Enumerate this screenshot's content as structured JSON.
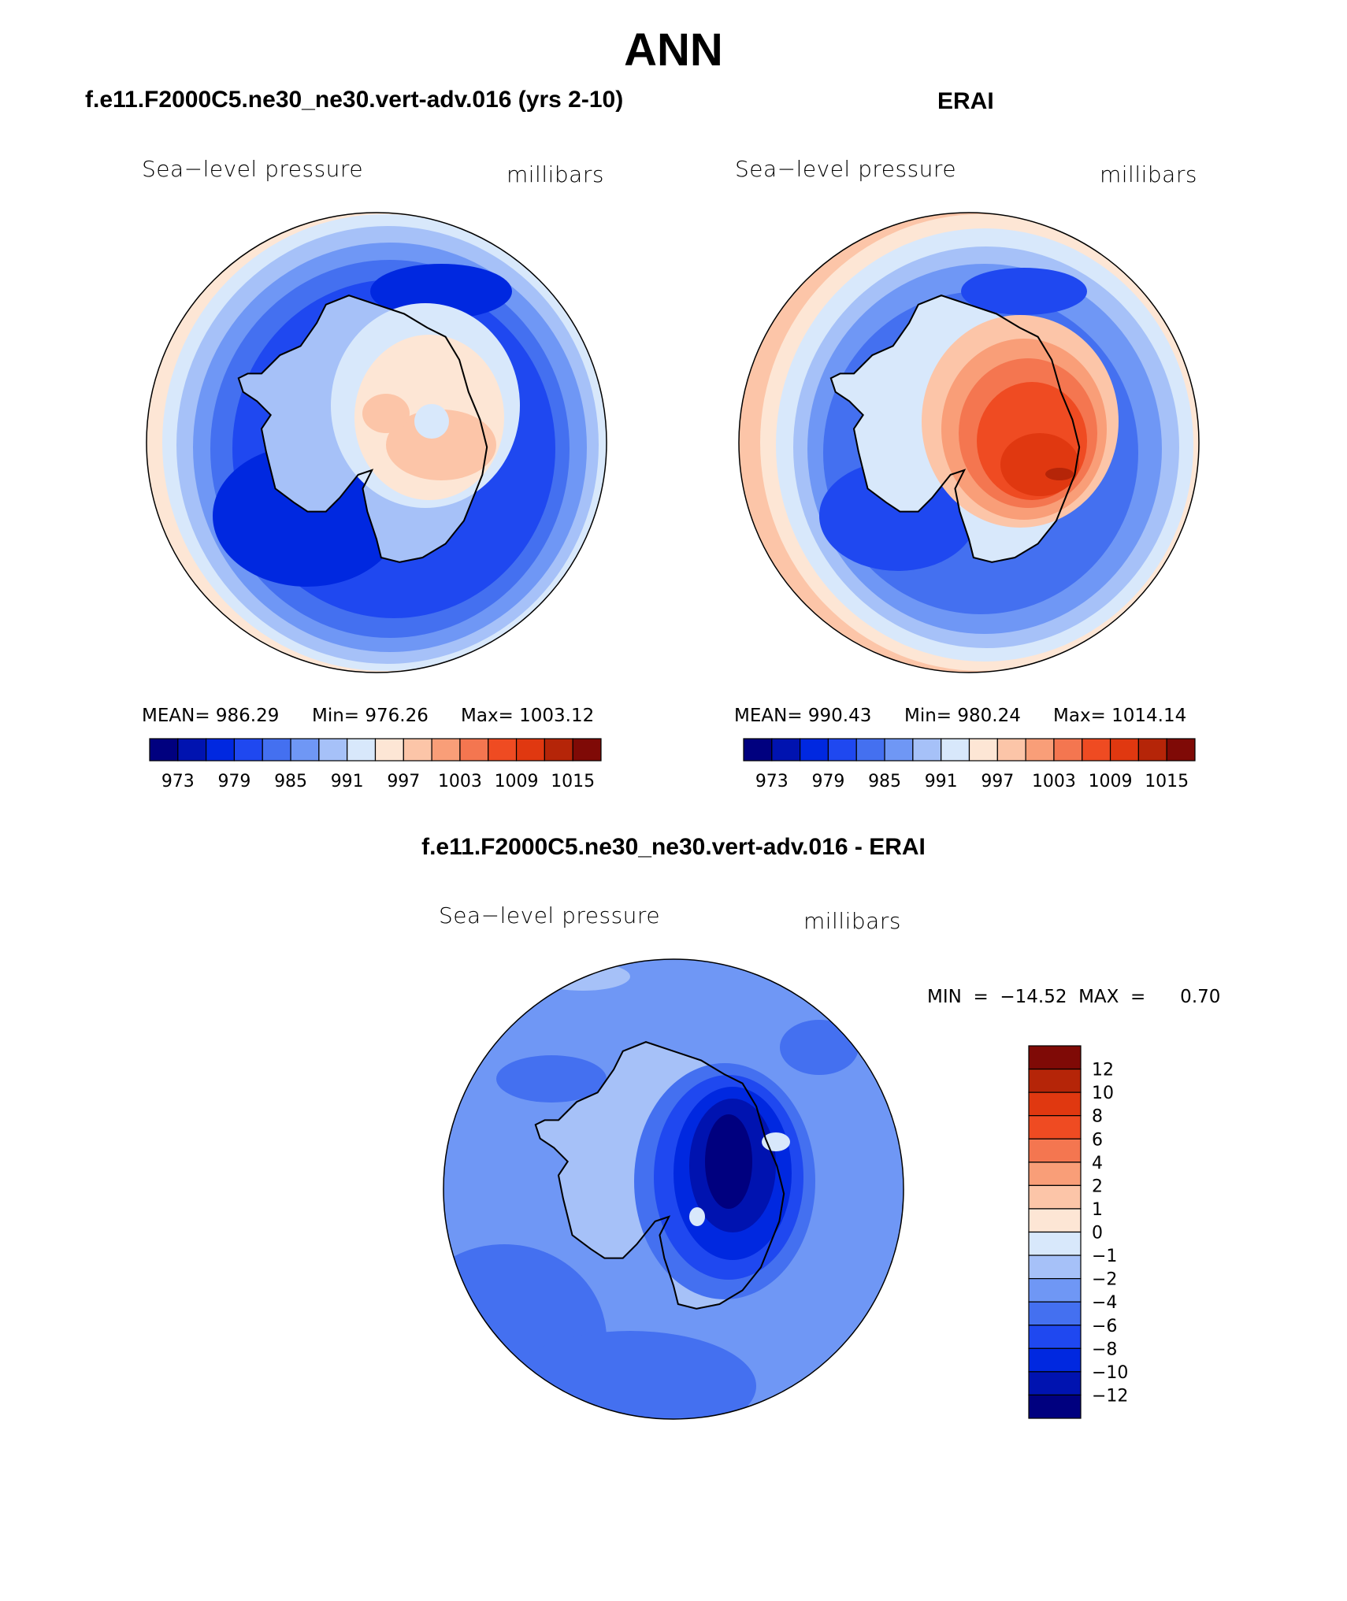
{
  "title": "ANN",
  "palette": [
    "#00007f",
    "#0013b0",
    "#0028e0",
    "#1f48f0",
    "#4470f0",
    "#6f97f5",
    "#a6c1f8",
    "#d8e8fb",
    "#fde6d5",
    "#fcc5a8",
    "#f99e78",
    "#f47650",
    "#ef4b22",
    "#e03810",
    "#b52508",
    "#7f0a06"
  ],
  "panels": [
    {
      "id": "model",
      "case_title": "f.e11.F2000C5.ne30_ne30.vert-adv.016 (yrs 2-10)",
      "variable": "Sea−level pressure",
      "units": "millibars",
      "stats": {
        "mean": "MEAN=  986.29",
        "min": "Min=  976.26",
        "max": "Max=  1003.12"
      },
      "colorbar_ticks": [
        "973",
        "979",
        "985",
        "991",
        "997",
        "1003",
        "1009",
        "1015"
      ]
    },
    {
      "id": "obs",
      "case_title": "ERAI",
      "variable": "Sea−level pressure",
      "units": "millibars",
      "stats": {
        "mean": "MEAN=  990.43",
        "min": "Min=  980.24",
        "max": "Max=  1014.14"
      },
      "colorbar_ticks": [
        "973",
        "979",
        "985",
        "991",
        "997",
        "1003",
        "1009",
        "1015"
      ]
    }
  ],
  "diff": {
    "case_title": "f.e11.F2000C5.ne30_ne30.vert-adv.016 - ERAI",
    "variable": "Sea−level pressure",
    "units": "millibars",
    "minmax": "MIN  =  −14.52  MAX  =      0.70",
    "colorbar_labels": [
      "12",
      "10",
      "8",
      "6",
      "4",
      "2",
      "1",
      "0",
      "−1",
      "−2",
      "−4",
      "−6",
      "−8",
      "−10",
      "−12"
    ]
  },
  "chart_data": [
    {
      "type": "heatmap",
      "projection": "south polar stereographic",
      "title": "f.e11.F2000C5.ne30_ne30.vert-adv.016 (yrs 2-10)",
      "label": "Sea−level pressure",
      "units": "millibars",
      "mean": 986.29,
      "min": 976.26,
      "max": 1003.12,
      "contour_levels": [
        973,
        975,
        977,
        979,
        981,
        983,
        985,
        987,
        989,
        991,
        993,
        995,
        997,
        999,
        1001,
        1003,
        1005,
        1007,
        1009,
        1011,
        1013,
        1015
      ]
    },
    {
      "type": "heatmap",
      "projection": "south polar stereographic",
      "title": "ERAI",
      "label": "Sea−level pressure",
      "units": "millibars",
      "mean": 990.43,
      "min": 980.24,
      "max": 1014.14,
      "contour_levels": [
        973,
        975,
        977,
        979,
        981,
        983,
        985,
        987,
        989,
        991,
        993,
        995,
        997,
        999,
        1001,
        1003,
        1005,
        1007,
        1009,
        1011,
        1013,
        1015
      ]
    },
    {
      "type": "heatmap",
      "projection": "south polar stereographic",
      "title": "f.e11.F2000C5.ne30_ne30.vert-adv.016 - ERAI",
      "label": "Sea−level pressure",
      "units": "millibars",
      "min": -14.52,
      "max": 0.7,
      "contour_levels": [
        -12,
        -10,
        -8,
        -6,
        -4,
        -2,
        -1,
        0,
        1,
        2,
        4,
        6,
        8,
        10,
        12
      ]
    }
  ]
}
